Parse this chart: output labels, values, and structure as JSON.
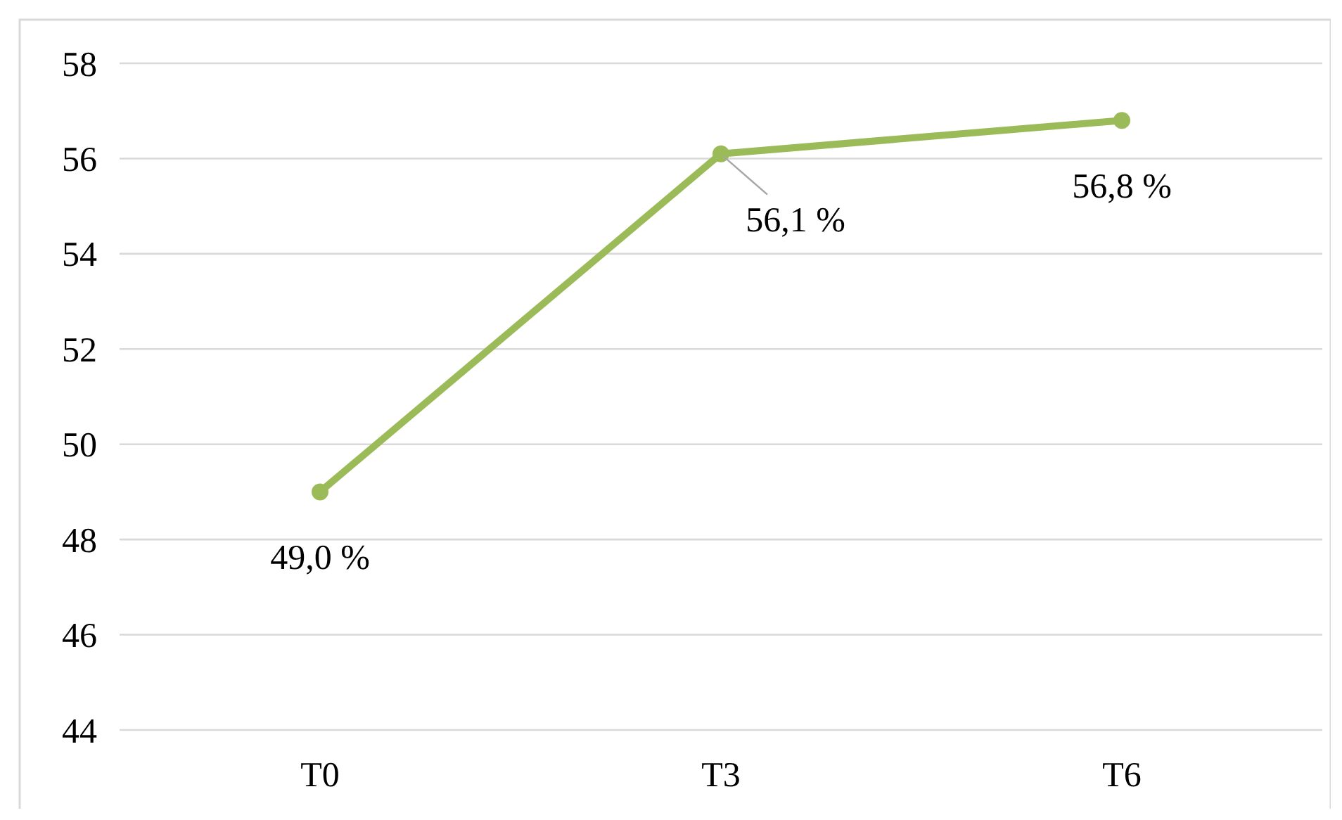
{
  "chart_data": {
    "type": "line",
    "categories": [
      "T0",
      "T3",
      "T6"
    ],
    "series": [
      {
        "color": "#9bbb59",
        "values": [
          49.0,
          56.1,
          56.8
        ],
        "value_labels": [
          "49,0 %",
          "56,1 %",
          "56,8 %"
        ]
      }
    ],
    "ylim": [
      44,
      58
    ],
    "yticks": [
      44,
      46,
      48,
      50,
      52,
      54,
      56,
      58
    ],
    "grid": "y",
    "marker": "circle",
    "line_style": "solid"
  }
}
